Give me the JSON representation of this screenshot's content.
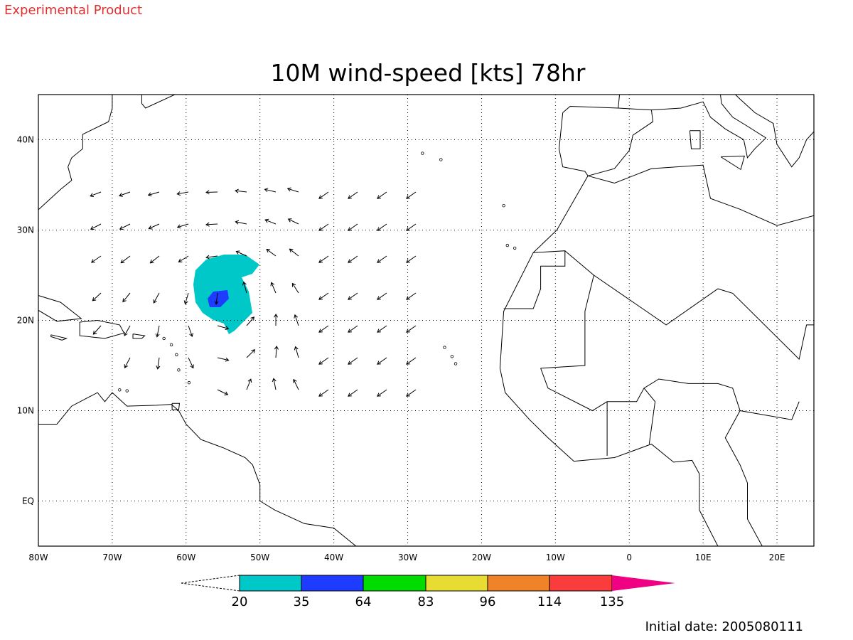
{
  "header": {
    "label": "Experimental Product"
  },
  "title": "10M wind-speed [kts] 78hr",
  "map": {
    "x_labels": [
      "80W",
      "70W",
      "60W",
      "50W",
      "40W",
      "30W",
      "20W",
      "10W",
      "0",
      "10E",
      "20E"
    ],
    "y_labels": [
      "40N",
      "30N",
      "20N",
      "10N",
      "EQ"
    ]
  },
  "colorbar": {
    "labels": [
      20,
      35,
      64,
      83,
      96,
      114,
      135
    ]
  },
  "footer": "Initial date: 2005080111"
}
